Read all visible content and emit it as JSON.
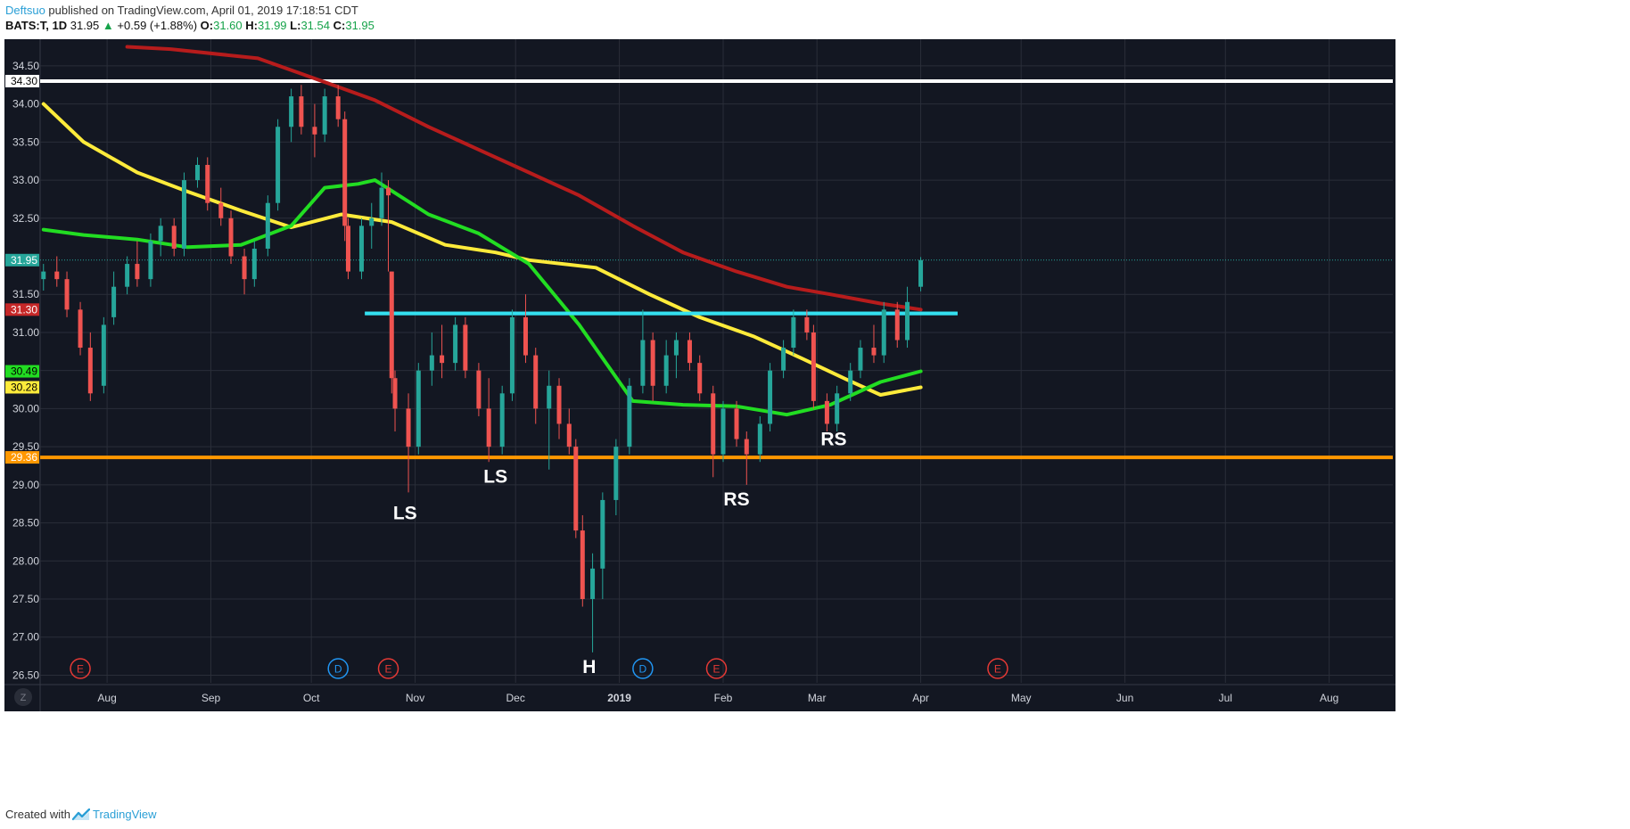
{
  "header": {
    "author": "Deftsuo",
    "published_text": " published on TradingView.com, April 01, 2019 17:18:51 CDT",
    "symbol": "BATS:T, 1D",
    "last": "31.95",
    "change": "+0.59 (+1.88%)",
    "o_label": "O:",
    "o_value": "31.60",
    "h_label": "H:",
    "h_value": "31.99",
    "l_label": "L:",
    "l_value": "31.54",
    "c_label": "C:",
    "c_value": "31.95"
  },
  "footer": {
    "created_with": "Created with",
    "brand": "TradingView"
  },
  "colors": {
    "background": "#131722",
    "grid": "#2a2e39",
    "up_candle": "#26a69a",
    "down_candle": "#ef5350",
    "ma_red": "#b71c1c",
    "ma_yellow": "#ffeb3b",
    "ma_green": "#22dd22",
    "resistance_white": "#ffffff",
    "neckline_cyan": "#34e0f0",
    "support_orange": "#ff9800"
  },
  "chart_data": {
    "type": "candlestick",
    "symbol": "BATS:T",
    "interval": "1D",
    "x_axis_labels": [
      "Aug",
      "Sep",
      "Oct",
      "Nov",
      "Dec",
      "2019",
      "Feb",
      "Mar",
      "Apr",
      "May",
      "Jun",
      "Jul",
      "Aug"
    ],
    "x_axis_dates": [
      "2018-08-01",
      "2018-09-01",
      "2018-10-01",
      "2018-11-01",
      "2018-12-01",
      "2019-01-01",
      "2019-02-01",
      "2019-03-01",
      "2019-04-01",
      "2019-05-01",
      "2019-06-01",
      "2019-07-01",
      "2019-08-01"
    ],
    "y_ticks": [
      "34.50",
      "34.00",
      "33.50",
      "33.00",
      "32.50",
      "31.50",
      "31.00",
      "30.50",
      "30.00",
      "29.50",
      "29.00",
      "28.50",
      "28.00",
      "27.50",
      "27.00",
      "26.50"
    ],
    "ylim": [
      26.4,
      34.85
    ],
    "xlim": [
      "2018-07-12",
      "2019-08-20"
    ],
    "grid": true,
    "price_labels": [
      {
        "text": "34.30",
        "value": 34.3,
        "bg": "#ffffff",
        "fg": "#000000"
      },
      {
        "text": "31.95",
        "value": 31.95,
        "bg": "#26a69a",
        "fg": "#ffffff"
      },
      {
        "text": "31.30",
        "value": 31.3,
        "bg": "#c62828",
        "fg": "#ffffff"
      },
      {
        "text": "30.49",
        "value": 30.49,
        "bg": "#22dd22",
        "fg": "#000000"
      },
      {
        "text": "30.28",
        "value": 30.28,
        "bg": "#ffeb3b",
        "fg": "#000000"
      },
      {
        "text": "29.36",
        "value": 29.36,
        "bg": "#ff9800",
        "fg": "#ffffff"
      }
    ],
    "horizontal_lines": [
      {
        "name": "resistance",
        "value": 34.3,
        "from": "2018-07-12",
        "to": "2019-08-20",
        "color": "#ffffff"
      },
      {
        "name": "neckline",
        "value": 31.25,
        "from": "2018-10-17",
        "to": "2019-04-12",
        "color": "#34e0f0"
      },
      {
        "name": "support",
        "value": 29.36,
        "from": "2018-07-12",
        "to": "2019-08-20",
        "color": "#ff9800"
      }
    ],
    "moving_averages": [
      {
        "color": "#b71c1c",
        "points": [
          [
            "2018-08-07",
            34.75
          ],
          [
            "2018-08-20",
            34.72
          ],
          [
            "2018-09-15",
            34.6
          ],
          [
            "2018-10-01",
            34.35
          ],
          [
            "2018-10-20",
            34.05
          ],
          [
            "2018-11-05",
            33.7
          ],
          [
            "2018-11-20",
            33.4
          ],
          [
            "2018-12-05",
            33.1
          ],
          [
            "2018-12-20",
            32.8
          ],
          [
            "2019-01-05",
            32.4
          ],
          [
            "2019-01-20",
            32.05
          ],
          [
            "2019-02-05",
            31.8
          ],
          [
            "2019-02-20",
            31.6
          ],
          [
            "2019-03-05",
            31.5
          ],
          [
            "2019-03-20",
            31.38
          ],
          [
            "2019-04-01",
            31.3
          ]
        ]
      },
      {
        "color": "#ffeb3b",
        "points": [
          [
            "2018-07-13",
            34.0
          ],
          [
            "2018-07-25",
            33.5
          ],
          [
            "2018-08-10",
            33.1
          ],
          [
            "2018-08-25",
            32.85
          ],
          [
            "2018-09-10",
            32.6
          ],
          [
            "2018-09-25",
            32.38
          ],
          [
            "2018-10-10",
            32.55
          ],
          [
            "2018-10-25",
            32.45
          ],
          [
            "2018-11-10",
            32.15
          ],
          [
            "2018-11-25",
            32.05
          ],
          [
            "2018-12-05",
            31.95
          ],
          [
            "2018-12-25",
            31.85
          ],
          [
            "2019-01-10",
            31.5
          ],
          [
            "2019-01-25",
            31.2
          ],
          [
            "2019-02-10",
            30.95
          ],
          [
            "2019-02-25",
            30.65
          ],
          [
            "2019-03-10",
            30.38
          ],
          [
            "2019-03-20",
            30.18
          ],
          [
            "2019-04-01",
            30.28
          ]
        ]
      },
      {
        "color": "#22dd22",
        "points": [
          [
            "2018-07-13",
            32.35
          ],
          [
            "2018-07-25",
            32.28
          ],
          [
            "2018-08-10",
            32.22
          ],
          [
            "2018-08-25",
            32.12
          ],
          [
            "2018-09-10",
            32.15
          ],
          [
            "2018-09-25",
            32.4
          ],
          [
            "2018-10-05",
            32.9
          ],
          [
            "2018-10-15",
            32.95
          ],
          [
            "2018-10-20",
            33.0
          ],
          [
            "2018-11-05",
            32.55
          ],
          [
            "2018-11-20",
            32.3
          ],
          [
            "2018-12-05",
            31.9
          ],
          [
            "2018-12-20",
            31.1
          ],
          [
            "2019-01-05",
            30.1
          ],
          [
            "2019-01-20",
            30.05
          ],
          [
            "2019-02-05",
            30.03
          ],
          [
            "2019-02-20",
            29.92
          ],
          [
            "2019-03-05",
            30.05
          ],
          [
            "2019-03-20",
            30.35
          ],
          [
            "2019-04-01",
            30.49
          ]
        ]
      }
    ],
    "candles": [
      [
        "2018-07-13",
        31.7,
        31.9,
        31.55,
        31.8
      ],
      [
        "2018-07-17",
        31.8,
        32.0,
        31.6,
        31.7
      ],
      [
        "2018-07-20",
        31.7,
        31.8,
        31.2,
        31.3
      ],
      [
        "2018-07-24",
        31.3,
        31.4,
        30.7,
        30.8
      ],
      [
        "2018-07-27",
        30.8,
        31.0,
        30.1,
        30.2
      ],
      [
        "2018-07-31",
        30.3,
        31.2,
        30.2,
        31.1
      ],
      [
        "2018-08-03",
        31.2,
        31.8,
        31.1,
        31.6
      ],
      [
        "2018-08-07",
        31.6,
        32.0,
        31.5,
        31.9
      ],
      [
        "2018-08-10",
        31.9,
        32.2,
        31.6,
        31.7
      ],
      [
        "2018-08-14",
        31.7,
        32.3,
        31.6,
        32.2
      ],
      [
        "2018-08-17",
        32.2,
        32.5,
        32.0,
        32.4
      ],
      [
        "2018-08-21",
        32.4,
        32.5,
        32.0,
        32.1
      ],
      [
        "2018-08-24",
        32.1,
        33.1,
        32.0,
        33.0
      ],
      [
        "2018-08-28",
        33.0,
        33.3,
        32.9,
        33.2
      ],
      [
        "2018-08-31",
        33.2,
        33.3,
        32.6,
        32.7
      ],
      [
        "2018-09-04",
        32.7,
        32.9,
        32.4,
        32.5
      ],
      [
        "2018-09-07",
        32.5,
        32.6,
        31.9,
        32.0
      ],
      [
        "2018-09-11",
        32.0,
        32.1,
        31.5,
        31.7
      ],
      [
        "2018-09-14",
        31.7,
        32.2,
        31.6,
        32.1
      ],
      [
        "2018-09-18",
        32.1,
        32.8,
        32.0,
        32.7
      ],
      [
        "2018-09-21",
        32.7,
        33.8,
        32.6,
        33.7
      ],
      [
        "2018-09-25",
        33.7,
        34.2,
        33.5,
        34.1
      ],
      [
        "2018-09-28",
        34.1,
        34.25,
        33.6,
        33.7
      ],
      [
        "2018-10-02",
        33.7,
        34.0,
        33.3,
        33.6
      ],
      [
        "2018-10-05",
        33.6,
        34.2,
        33.5,
        34.1
      ],
      [
        "2018-10-09",
        34.1,
        34.25,
        33.7,
        33.8
      ],
      [
        "2018-10-11",
        33.8,
        33.9,
        32.2,
        32.4
      ],
      [
        "2018-10-12",
        32.4,
        32.5,
        31.7,
        31.8
      ],
      [
        "2018-10-16",
        31.8,
        32.5,
        31.7,
        32.4
      ],
      [
        "2018-10-19",
        32.4,
        32.7,
        32.1,
        32.5
      ],
      [
        "2018-10-22",
        32.5,
        33.1,
        32.4,
        32.9
      ],
      [
        "2018-10-24",
        32.9,
        33.0,
        31.8,
        32.8
      ],
      [
        "2018-10-25",
        31.8,
        31.8,
        30.2,
        30.4
      ],
      [
        "2018-10-26",
        30.4,
        30.5,
        29.7,
        30.0
      ],
      [
        "2018-10-30",
        30.0,
        30.2,
        28.9,
        29.5
      ],
      [
        "2018-11-02",
        29.5,
        30.6,
        29.4,
        30.5
      ],
      [
        "2018-11-06",
        30.5,
        31.0,
        30.3,
        30.7
      ],
      [
        "2018-11-09",
        30.7,
        31.1,
        30.4,
        30.6
      ],
      [
        "2018-11-13",
        30.6,
        31.2,
        30.5,
        31.1
      ],
      [
        "2018-11-16",
        31.1,
        31.2,
        30.4,
        30.5
      ],
      [
        "2018-11-20",
        30.5,
        30.6,
        29.9,
        30.0
      ],
      [
        "2018-11-23",
        30.0,
        30.4,
        29.3,
        29.5
      ],
      [
        "2018-11-27",
        29.5,
        30.3,
        29.4,
        30.2
      ],
      [
        "2018-11-30",
        30.2,
        31.3,
        30.1,
        31.2
      ],
      [
        "2018-12-04",
        31.2,
        31.5,
        30.6,
        30.7
      ],
      [
        "2018-12-07",
        30.7,
        30.8,
        29.8,
        30.0
      ],
      [
        "2018-12-11",
        30.0,
        30.5,
        29.2,
        30.3
      ],
      [
        "2018-12-14",
        30.3,
        30.4,
        29.6,
        29.8
      ],
      [
        "2018-12-17",
        29.8,
        30.0,
        29.4,
        29.5
      ],
      [
        "2018-12-19",
        29.5,
        29.6,
        28.3,
        28.4
      ],
      [
        "2018-12-21",
        28.4,
        28.6,
        27.4,
        27.5
      ],
      [
        "2018-12-24",
        27.5,
        28.1,
        26.8,
        27.9
      ],
      [
        "2018-12-27",
        27.9,
        28.9,
        27.5,
        28.8
      ],
      [
        "2018-12-31",
        28.8,
        29.6,
        28.6,
        29.5
      ],
      [
        "2019-01-04",
        29.5,
        30.4,
        29.4,
        30.3
      ],
      [
        "2019-01-08",
        30.3,
        31.3,
        30.2,
        30.9
      ],
      [
        "2019-01-11",
        30.9,
        31.0,
        30.1,
        30.3
      ],
      [
        "2019-01-15",
        30.3,
        30.9,
        30.2,
        30.7
      ],
      [
        "2019-01-18",
        30.7,
        31.0,
        30.4,
        30.9
      ],
      [
        "2019-01-22",
        30.9,
        31.0,
        30.5,
        30.6
      ],
      [
        "2019-01-25",
        30.6,
        30.7,
        30.1,
        30.2
      ],
      [
        "2019-01-29",
        30.2,
        30.3,
        29.1,
        29.4
      ],
      [
        "2019-02-01",
        29.4,
        30.1,
        29.3,
        30.0
      ],
      [
        "2019-02-05",
        30.0,
        30.1,
        29.5,
        29.6
      ],
      [
        "2019-02-08",
        29.6,
        29.7,
        29.0,
        29.4
      ],
      [
        "2019-02-12",
        29.4,
        29.9,
        29.3,
        29.8
      ],
      [
        "2019-02-15",
        29.8,
        30.6,
        29.7,
        30.5
      ],
      [
        "2019-02-19",
        30.5,
        30.9,
        30.4,
        30.8
      ],
      [
        "2019-02-22",
        30.8,
        31.3,
        30.7,
        31.2
      ],
      [
        "2019-02-26",
        31.2,
        31.3,
        30.9,
        31.0
      ],
      [
        "2019-02-28",
        31.0,
        31.1,
        30.0,
        30.1
      ],
      [
        "2019-03-04",
        30.1,
        30.2,
        29.7,
        29.8
      ],
      [
        "2019-03-07",
        29.8,
        30.3,
        29.7,
        30.2
      ],
      [
        "2019-03-11",
        30.2,
        30.6,
        30.1,
        30.5
      ],
      [
        "2019-03-14",
        30.5,
        30.9,
        30.4,
        30.8
      ],
      [
        "2019-03-18",
        30.8,
        31.1,
        30.6,
        30.7
      ],
      [
        "2019-03-21",
        30.7,
        31.4,
        30.6,
        31.3
      ],
      [
        "2019-03-25",
        31.3,
        31.4,
        30.8,
        30.9
      ],
      [
        "2019-03-28",
        30.9,
        31.6,
        30.8,
        31.4
      ],
      [
        "2019-04-01",
        31.6,
        31.99,
        31.54,
        31.95
      ]
    ],
    "annotations": [
      {
        "text": "LS",
        "date": "2018-10-29",
        "value": 28.55
      },
      {
        "text": "LS",
        "date": "2018-11-25",
        "value": 29.03
      },
      {
        "text": "H",
        "date": "2018-12-23",
        "value": 26.53
      },
      {
        "text": "RS",
        "date": "2019-02-05",
        "value": 28.73
      },
      {
        "text": "RS",
        "date": "2019-03-06",
        "value": 29.52
      }
    ],
    "events": [
      {
        "text": "E",
        "date": "2018-07-24",
        "kind": "earnings"
      },
      {
        "text": "D",
        "date": "2018-10-09",
        "kind": "dividend"
      },
      {
        "text": "E",
        "date": "2018-10-24",
        "kind": "earnings"
      },
      {
        "text": "D",
        "date": "2019-01-08",
        "kind": "dividend"
      },
      {
        "text": "E",
        "date": "2019-01-30",
        "kind": "earnings"
      },
      {
        "text": "E",
        "date": "2019-04-24",
        "kind": "earnings"
      }
    ],
    "corner_button": "Z"
  }
}
